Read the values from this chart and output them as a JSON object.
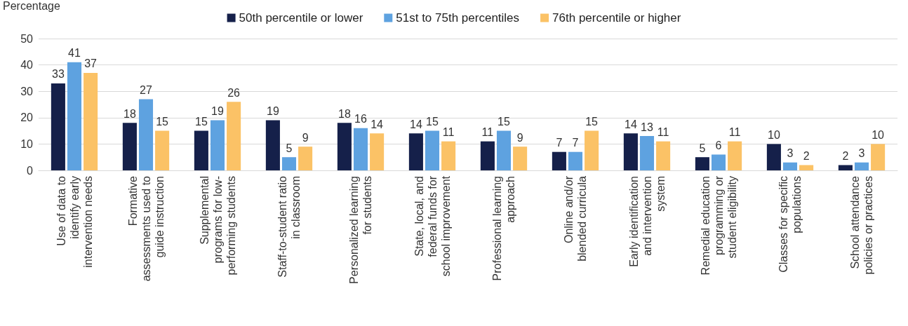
{
  "chart_data": {
    "type": "bar",
    "ylabel": "Percentage",
    "categories": [
      "Use of data to\nidentify early\nintervention needs",
      "Formative\nassessments used to\nguide instruction",
      "Supplemental\nprograms for low-\nperforming students",
      "Staff-to-student ratio\nin classroom",
      "Personalized learning\nfor students",
      "State, local, and\nfederal funds for\nschool improvement",
      "Professional learning\napproach",
      "Online and/or\nblended curricula",
      "Early identification\nand intervention\nsystem",
      "Remedial education\nprogramming or\nstudent eligibility",
      "Classes for specific\npopulations",
      "School attendance\npolicies or practices"
    ],
    "series": [
      {
        "name": "50th percentile or lower",
        "color": "#15204a",
        "values": [
          33,
          18,
          15,
          19,
          18,
          14,
          11,
          7,
          14,
          5,
          10,
          2
        ]
      },
      {
        "name": "51st to 75th percentiles",
        "color": "#5ea2e0",
        "values": [
          41,
          27,
          19,
          5,
          16,
          15,
          15,
          7,
          13,
          6,
          3,
          3
        ]
      },
      {
        "name": "76th percentile or higher",
        "color": "#fbc266",
        "values": [
          37,
          15,
          26,
          9,
          14,
          11,
          9,
          15,
          11,
          11,
          2,
          10
        ]
      }
    ],
    "ylim": [
      0,
      50
    ],
    "yticks": [
      0,
      10,
      20,
      30,
      40,
      50
    ],
    "grid": "y",
    "legend": "top",
    "data_labels": true
  }
}
